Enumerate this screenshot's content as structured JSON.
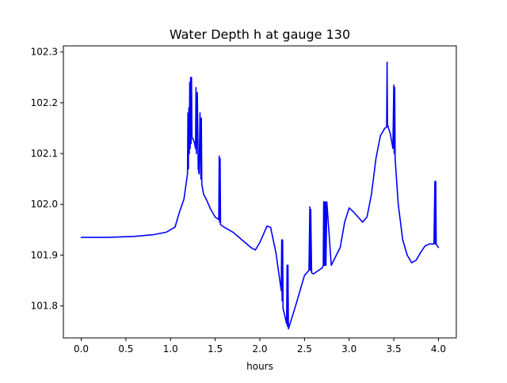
{
  "chart_data": {
    "type": "line",
    "title": "Water Depth h at gauge 130",
    "xlabel": "hours",
    "ylabel": "",
    "xlim": [
      -0.2,
      4.2
    ],
    "ylim": [
      101.737,
      102.312
    ],
    "grid": false,
    "legend": "none",
    "x_ticks": [
      0.0,
      0.5,
      1.0,
      1.5,
      2.0,
      2.5,
      3.0,
      3.5,
      4.0
    ],
    "x_tick_labels": [
      "0.0",
      "0.5",
      "1.0",
      "1.5",
      "2.0",
      "2.5",
      "3.0",
      "3.5",
      "4.0"
    ],
    "y_ticks": [
      101.8,
      101.9,
      102.0,
      102.1,
      102.2,
      102.3
    ],
    "y_tick_labels": [
      "101.8",
      "101.9",
      "102.0",
      "102.1",
      "102.2",
      "102.3"
    ],
    "series": [
      {
        "color": "#0000ff",
        "x": [
          0.0,
          0.3,
          0.6,
          0.8,
          0.95,
          1.05,
          1.1,
          1.15,
          1.19,
          1.195,
          1.2,
          1.205,
          1.21,
          1.215,
          1.22,
          1.225,
          1.23,
          1.235,
          1.24,
          1.245,
          1.25,
          1.27,
          1.28,
          1.285,
          1.29,
          1.3,
          1.31,
          1.32,
          1.33,
          1.34,
          1.345,
          1.35,
          1.36,
          1.37,
          1.4,
          1.45,
          1.5,
          1.54,
          1.545,
          1.55,
          1.555,
          1.56,
          1.6,
          1.7,
          1.8,
          1.9,
          1.95,
          2.0,
          2.05,
          2.08,
          2.12,
          2.18,
          2.24,
          2.245,
          2.25,
          2.255,
          2.26,
          2.3,
          2.305,
          2.31,
          2.315,
          2.32,
          2.33,
          2.4,
          2.5,
          2.55,
          2.56,
          2.565,
          2.57,
          2.58,
          2.6,
          2.7,
          2.71,
          2.715,
          2.72,
          2.725,
          2.73,
          2.735,
          2.74,
          2.75,
          2.8,
          2.9,
          2.95,
          3.0,
          3.05,
          3.1,
          3.15,
          3.2,
          3.25,
          3.3,
          3.35,
          3.4,
          3.42,
          3.425,
          3.43,
          3.435,
          3.44,
          3.46,
          3.49,
          3.5,
          3.505,
          3.51,
          3.515,
          3.55,
          3.6,
          3.65,
          3.7,
          3.75,
          3.8,
          3.85,
          3.9,
          3.95,
          3.96,
          3.965,
          3.97,
          3.975,
          3.98,
          4.0
        ],
        "y": [
          101.935,
          101.935,
          101.937,
          101.94,
          101.945,
          101.955,
          101.985,
          102.01,
          102.06,
          102.18,
          102.07,
          102.19,
          102.1,
          102.24,
          102.11,
          102.25,
          102.12,
          102.25,
          102.13,
          102.13,
          102.13,
          102.12,
          102.11,
          102.23,
          102.1,
          102.22,
          102.07,
          102.06,
          102.18,
          102.05,
          102.17,
          102.04,
          102.03,
          102.02,
          102.01,
          101.99,
          101.975,
          101.97,
          102.095,
          101.965,
          102.09,
          101.96,
          101.955,
          101.945,
          101.93,
          101.915,
          101.91,
          101.925,
          101.945,
          101.957,
          101.955,
          101.905,
          101.83,
          101.93,
          101.81,
          101.93,
          101.795,
          101.765,
          101.88,
          101.76,
          101.88,
          101.755,
          101.76,
          101.8,
          101.86,
          101.87,
          101.995,
          101.87,
          101.99,
          101.865,
          101.863,
          101.875,
          101.88,
          102.005,
          101.88,
          102.005,
          101.88,
          102.005,
          101.88,
          102.005,
          101.88,
          101.915,
          101.965,
          101.993,
          101.985,
          101.975,
          101.965,
          101.975,
          102.02,
          102.09,
          102.135,
          102.15,
          102.152,
          102.28,
          102.153,
          102.155,
          102.15,
          102.14,
          102.11,
          102.235,
          102.1,
          102.23,
          102.09,
          102.0,
          101.93,
          101.9,
          101.885,
          101.89,
          101.905,
          101.918,
          101.922,
          101.922,
          102.045,
          101.922,
          102.045,
          101.922,
          101.92,
          101.915
        ]
      }
    ]
  }
}
